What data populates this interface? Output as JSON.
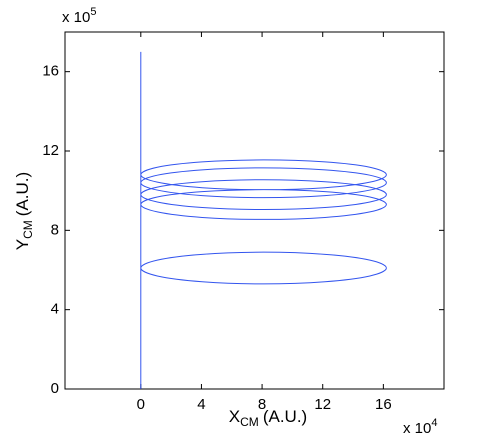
{
  "chart_data": {
    "type": "line",
    "xlabel": {
      "main": "X",
      "sub": "CM",
      "unit": "(A.U.)"
    },
    "ylabel": {
      "main": "Y",
      "sub": "CM",
      "unit": "(A.U.)"
    },
    "x_multiplier": {
      "base": "x 10",
      "exp": "4"
    },
    "y_multiplier": {
      "base": "x 10",
      "exp": "5"
    },
    "xlim": [
      -5,
      20
    ],
    "ylim": [
      0,
      18
    ],
    "xticks": [
      0,
      4,
      8,
      12,
      16
    ],
    "yticks": [
      0,
      4,
      8,
      12,
      16
    ],
    "grid": false,
    "series": [
      {
        "color": "#3355ee",
        "x": [
          0,
          0,
          null,
          0,
          1.09,
          4.05,
          8.1,
          12.15,
          15.11,
          16.2,
          15.11,
          12.15,
          8.1,
          4.05,
          1.09,
          0,
          null,
          0,
          1.09,
          4.05,
          8.1,
          12.15,
          15.11,
          16.2,
          15.11,
          12.15,
          8.1,
          4.05,
          1.09,
          0,
          null,
          0,
          1.09,
          4.05,
          8.1,
          12.15,
          15.11,
          16.2,
          15.11,
          12.15,
          8.1,
          4.05,
          1.09,
          0,
          null,
          0,
          1.09,
          4.05,
          8.1,
          12.15,
          15.11,
          16.2,
          15.11,
          12.15,
          8.1,
          4.05,
          1.09,
          0,
          null,
          0,
          1.09,
          4.05,
          8.1,
          12.15,
          15.11,
          16.2,
          15.11,
          12.15,
          8.1,
          4.05,
          1.09,
          0
        ],
        "values": [
          0,
          17,
          null,
          6.1,
          6.5,
          6.79,
          6.9,
          6.79,
          6.5,
          6.1,
          5.7,
          5.41,
          5.3,
          5.41,
          5.7,
          6.1,
          null,
          10.8,
          11.18,
          11.45,
          11.55,
          11.45,
          11.18,
          10.8,
          10.43,
          10.15,
          10.05,
          10.15,
          10.43,
          10.8,
          null,
          10.4,
          10.78,
          11.05,
          11.15,
          11.05,
          10.78,
          10.4,
          10.03,
          9.75,
          9.65,
          9.75,
          10.03,
          10.4,
          null,
          9.8,
          10.18,
          10.45,
          10.55,
          10.45,
          10.18,
          9.8,
          9.43,
          9.15,
          9.05,
          9.15,
          9.43,
          9.8,
          null,
          9.3,
          9.68,
          9.95,
          10.05,
          9.95,
          9.68,
          9.3,
          8.93,
          8.65,
          8.55,
          8.65,
          8.93,
          9.3
        ]
      }
    ]
  }
}
